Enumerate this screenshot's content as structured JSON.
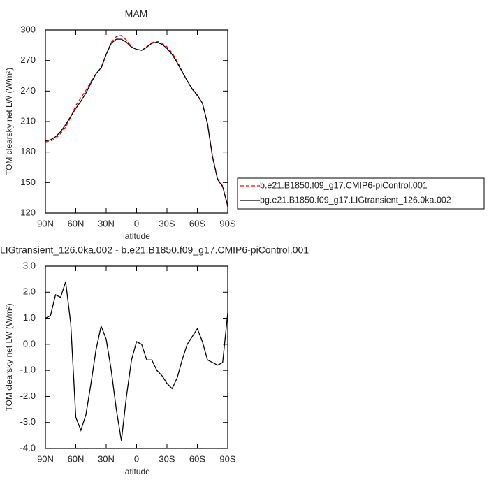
{
  "chart_data": [
    {
      "type": "line",
      "title": "MAM",
      "ylabel": "TOM clearsky net LW (W/m²)",
      "xlabel": "latitude",
      "x": [
        90,
        85,
        80,
        75,
        70,
        65,
        60,
        55,
        50,
        45,
        40,
        35,
        30,
        25,
        20,
        15,
        10,
        5,
        0,
        -5,
        -10,
        -15,
        -20,
        -25,
        -30,
        -35,
        -40,
        -45,
        -50,
        -55,
        -60,
        -65,
        -70,
        -75,
        -80,
        -85,
        -90
      ],
      "xlim": [
        90,
        -90
      ],
      "xticks": [
        {
          "value": 90,
          "label": "90N"
        },
        {
          "value": 60,
          "label": "60N"
        },
        {
          "value": 30,
          "label": "30N"
        },
        0,
        {
          "value": -30,
          "label": "30S"
        },
        {
          "value": -60,
          "label": "60S"
        },
        {
          "value": -90,
          "label": "90S"
        }
      ],
      "ylim": [
        120,
        300
      ],
      "yticks": [
        120,
        150,
        180,
        210,
        240,
        270,
        300
      ],
      "series": [
        {
          "name": "b.e21.B1850.f09_g17.CMIP6-piControl.001",
          "color": "#ff0000",
          "linestyle": "dashed",
          "values": [
            190,
            190.9,
            193.1,
            198.2,
            204.6,
            214.2,
            225.8,
            233.3,
            240.7,
            249.5,
            257.2,
            262.3,
            275.8,
            288,
            293.5,
            294.7,
            290,
            283.6,
            280.9,
            280,
            283.6,
            287.6,
            289,
            287.2,
            283.5,
            277.7,
            269.3,
            259.6,
            250,
            241.7,
            235.4,
            227.9,
            208.6,
            175.7,
            153.8,
            146.7,
            125.8
          ]
        },
        {
          "name": "bg.e21.B1850.f09_g17.LIGtransient_126.0ka.002",
          "color": "#000000",
          "linestyle": "solid",
          "values": [
            191,
            192,
            195,
            200,
            207,
            215,
            223,
            230,
            238,
            248,
            257,
            263,
            276,
            287,
            291,
            291,
            288,
            283,
            281,
            280,
            283,
            287,
            288,
            286,
            282,
            276,
            268,
            259,
            250,
            242,
            236,
            228,
            208,
            175,
            153,
            146,
            127
          ]
        }
      ]
    },
    {
      "type": "line",
      "title": "LIGtransient_126.0ka.002 - b.e21.B1850.f09_g17.CMIP6-piControl.001",
      "ylabel": "TOM clearsky net LW (W/m²)",
      "xlabel": "latitude",
      "x": [
        90,
        85,
        80,
        75,
        70,
        65,
        60,
        55,
        50,
        45,
        40,
        35,
        30,
        25,
        20,
        15,
        10,
        5,
        0,
        -5,
        -10,
        -15,
        -20,
        -25,
        -30,
        -35,
        -40,
        -45,
        -50,
        -55,
        -60,
        -65,
        -70,
        -75,
        -80,
        -85,
        -90
      ],
      "xlim": [
        90,
        -90
      ],
      "xticks": [
        {
          "value": 90,
          "label": "90N"
        },
        {
          "value": 60,
          "label": "60N"
        },
        {
          "value": 30,
          "label": "30N"
        },
        0,
        {
          "value": -30,
          "label": "30S"
        },
        {
          "value": -60,
          "label": "60S"
        },
        {
          "value": -90,
          "label": "90S"
        }
      ],
      "ylim": [
        -4,
        3
      ],
      "yticks": [
        {
          "value": -4,
          "label": "-4.0"
        },
        {
          "value": -3,
          "label": "-3.0"
        },
        {
          "value": -2,
          "label": "-2.0"
        },
        {
          "value": -1,
          "label": "-1.0"
        },
        {
          "value": 0,
          "label": "0.0"
        },
        {
          "value": 1,
          "label": "1.0"
        },
        {
          "value": 2,
          "label": "2.0"
        },
        {
          "value": 3,
          "label": "3.0"
        }
      ],
      "series": [
        {
          "color": "#000000",
          "linestyle": "solid",
          "values": [
            1.0,
            1.1,
            1.9,
            1.8,
            2.4,
            0.8,
            -2.8,
            -3.3,
            -2.7,
            -1.5,
            -0.2,
            0.7,
            0.2,
            -1.0,
            -2.5,
            -3.7,
            -2.0,
            -0.6,
            0.1,
            0.0,
            -0.6,
            -0.6,
            -1.0,
            -1.2,
            -1.5,
            -1.7,
            -1.3,
            -0.6,
            0.0,
            0.3,
            0.6,
            0.1,
            -0.6,
            -0.7,
            -0.8,
            -0.7,
            1.2
          ]
        }
      ]
    }
  ]
}
